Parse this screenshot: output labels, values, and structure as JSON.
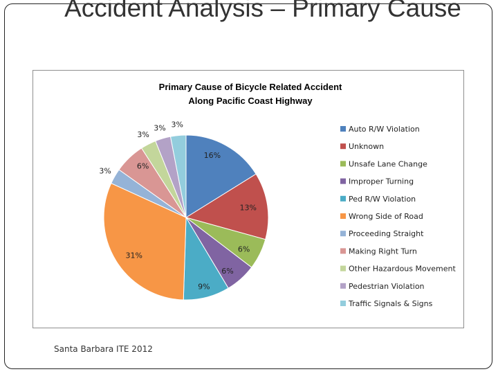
{
  "slide": {
    "title": "Accident Analysis – Primary Cause",
    "footer": "Santa Barbara ITE 2012"
  },
  "chart_data": {
    "type": "pie",
    "title": "Primary Cause of Bicycle Related Accident Along Pacific Coast Highway",
    "title_lines": [
      "Primary Cause of Bicycle Related Accident",
      "Along Pacific Coast Highway"
    ],
    "legend_position": "right",
    "start_angle_deg": 0,
    "direction": "clockwise",
    "slices": [
      {
        "label": "Auto R/W Violation",
        "value": 16,
        "display": "16%",
        "color": "#4f81bd"
      },
      {
        "label": "Unknown",
        "value": 13,
        "display": "13%",
        "color": "#c0504d"
      },
      {
        "label": "Unsafe Lane Change",
        "value": 6,
        "display": "6%",
        "color": "#9bbb59"
      },
      {
        "label": "Improper Turning",
        "value": 6,
        "display": "6%",
        "color": "#8064a2"
      },
      {
        "label": "Ped R/W Violation",
        "value": 9,
        "display": "9%",
        "color": "#4bacc6"
      },
      {
        "label": "Wrong Side of Road",
        "value": 31,
        "display": "31%",
        "color": "#f79646"
      },
      {
        "label": "Proceeding Straight",
        "value": 3,
        "display": "3%",
        "color": "#95b3d7"
      },
      {
        "label": "Making Right Turn",
        "value": 6,
        "display": "6%",
        "color": "#d99694"
      },
      {
        "label": "Other Hazardous Movement",
        "value": 3,
        "display": "3%",
        "color": "#c3d69b"
      },
      {
        "label": "Pedestrian Violation",
        "value": 3,
        "display": "3%",
        "color": "#b3a2c7"
      },
      {
        "label": "Traffic Signals & Signs",
        "value": 3,
        "display": "3%",
        "color": "#93cddd"
      }
    ]
  }
}
